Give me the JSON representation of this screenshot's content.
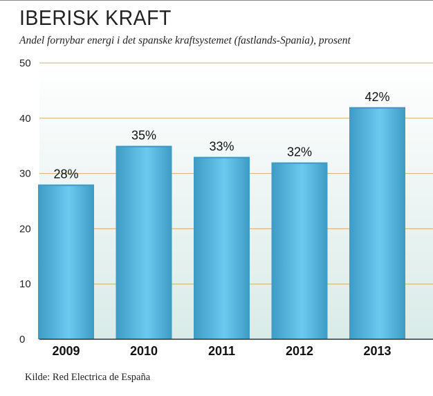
{
  "title": "IBERISK KRAFT",
  "subtitle": "Andel fornybar energi i det spanske kraftsystemet (fastlands-Spania), prosent",
  "source": "Kilde: Red Electrica de España",
  "colors": {
    "bar_dark": "#3e9bc4",
    "bar_light": "#6cc9ef",
    "background_top": "#ffffff",
    "background_bottom": "#d9ebe8",
    "gridline": "#c9b07a",
    "axis": "#333333"
  },
  "chart_data": {
    "type": "bar",
    "title": "IBERISK KRAFT",
    "xlabel": "",
    "ylabel": "",
    "categories": [
      "2009",
      "2010",
      "2011",
      "2012",
      "2013"
    ],
    "values": [
      28,
      35,
      33,
      32,
      42
    ],
    "data_labels": [
      "28%",
      "35%",
      "33%",
      "32%",
      "42%"
    ],
    "ylim": [
      0,
      50
    ],
    "yticks": [
      0,
      10,
      20,
      30,
      40,
      50
    ],
    "grid": true
  }
}
